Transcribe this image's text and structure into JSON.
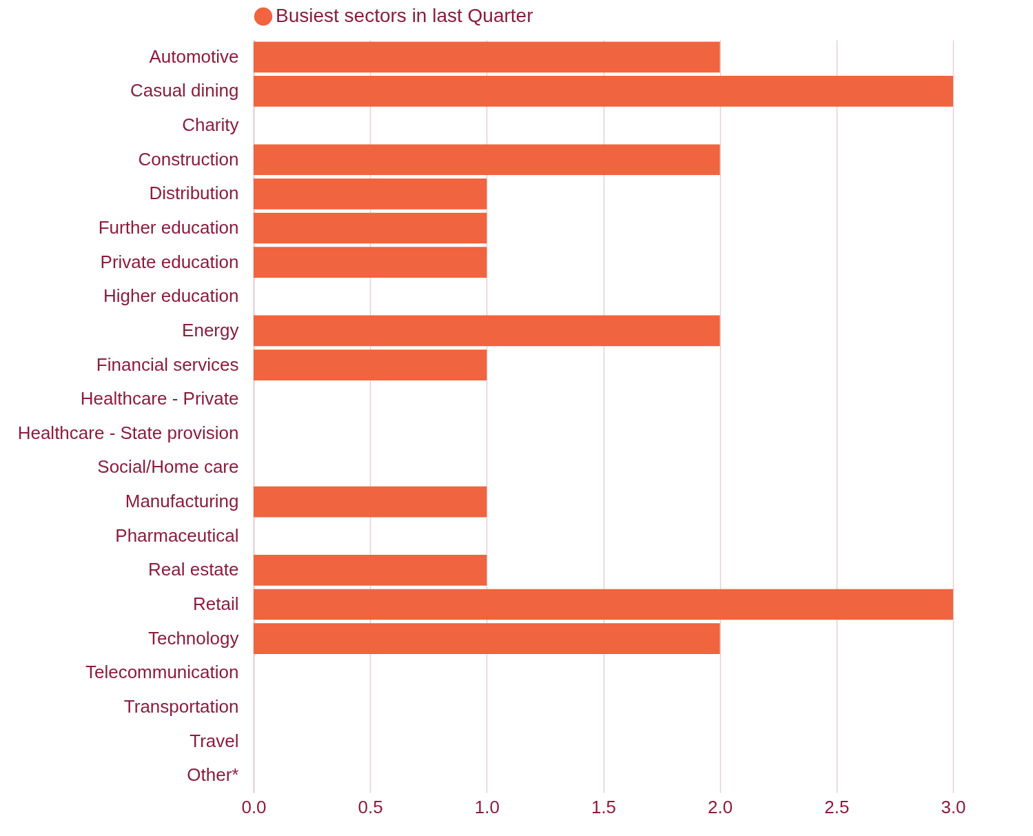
{
  "chart_data": {
    "type": "bar",
    "orientation": "horizontal",
    "categories": [
      "Automotive",
      "Casual dining",
      "Charity",
      "Construction",
      "Distribution",
      "Further education",
      "Private education",
      "Higher education",
      "Energy",
      "Financial services",
      "Healthcare - Private",
      "Healthcare - State provision",
      "Social/Home care",
      "Manufacturing",
      "Pharmaceutical",
      "Real estate",
      "Retail",
      "Technology",
      "Telecommunication",
      "Transportation",
      "Travel",
      "Other*"
    ],
    "series": [
      {
        "name": "Busiest sectors in last Quarter",
        "color": "#f0643f",
        "values": [
          2,
          3,
          0,
          2,
          1,
          1,
          1,
          0,
          2,
          1,
          0,
          0,
          0,
          1,
          0,
          1,
          3,
          2,
          0,
          0,
          0,
          0
        ]
      }
    ],
    "xlim": [
      0,
      3
    ],
    "xticks": [
      {
        "value": 0,
        "label": "0.0"
      },
      {
        "value": 0.5,
        "label": "0.5"
      },
      {
        "value": 1,
        "label": "1.0"
      },
      {
        "value": 1.5,
        "label": "1.5"
      },
      {
        "value": 2,
        "label": "2.0"
      },
      {
        "value": 2.5,
        "label": "2.5"
      },
      {
        "value": 3,
        "label": "3.0"
      }
    ],
    "grid": "x",
    "legend": "top"
  }
}
